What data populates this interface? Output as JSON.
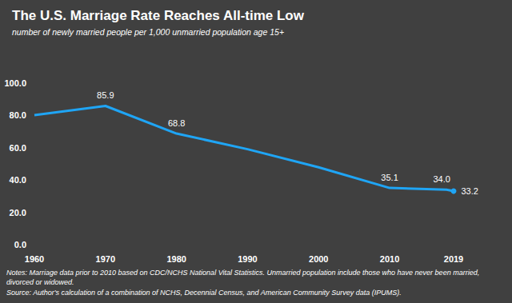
{
  "chart_data": {
    "type": "line",
    "title": "The U.S. Marriage Rate Reaches All-time Low",
    "subtitle": "number of newly married people per 1,000 unmarried population age 15+",
    "notes": [
      "Notes: Marriage data prior to 2010 based on CDC/NCHS National Vital Statistics. Unmarried population include those who have never been married, divorced or widowed.",
      "Source: Author's calculation of a combination of NCHS, Decennial Census, and American Community Survey data (IPUMS)."
    ],
    "x": [
      1960,
      1970,
      1980,
      1990,
      2000,
      2010,
      2018,
      2019
    ],
    "values": [
      80.2,
      85.9,
      68.8,
      59.1,
      47.9,
      35.1,
      34.0,
      33.2
    ],
    "value_labels": [
      null,
      "85.9",
      "68.8",
      null,
      null,
      "35.1",
      "34.0",
      "33.2"
    ],
    "data_labels": true,
    "color": "#1fa5f5",
    "xlim": [
      1960,
      2019
    ],
    "xticks": [
      1960,
      1970,
      1980,
      1990,
      2000,
      2010,
      2019
    ],
    "ylim": [
      0,
      100
    ],
    "yticks": [
      {
        "value": 0,
        "label": "0.0"
      },
      {
        "value": 20,
        "label": "20.0"
      },
      {
        "value": 40,
        "label": "40.0"
      },
      {
        "value": 60,
        "label": "60.0"
      },
      {
        "value": 80,
        "label": "80.0"
      },
      {
        "value": 100,
        "label": "100.0"
      }
    ],
    "grid": false
  }
}
